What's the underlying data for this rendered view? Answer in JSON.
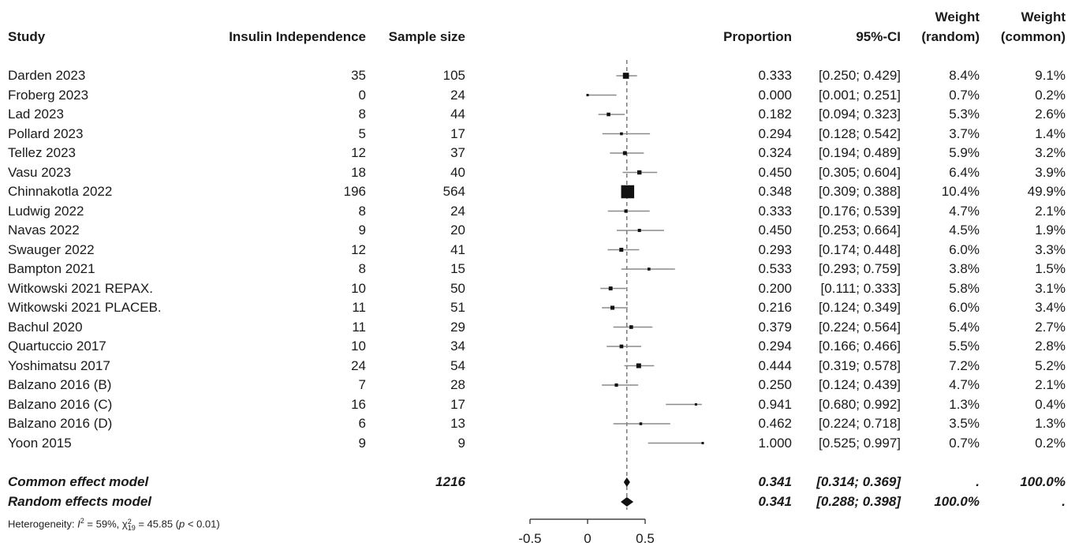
{
  "headers": {
    "study": "Study",
    "events": "Insulin Independence",
    "sample": "Sample size",
    "proportion": "Proportion",
    "ci": "95%-CI",
    "weight_random_1": "Weight",
    "weight_random_2": "(random)",
    "weight_common_1": "Weight",
    "weight_common_2": "(common)"
  },
  "studies": [
    {
      "study": "Darden 2023",
      "events": "35",
      "n": "105",
      "prop": "0.333",
      "ci": "[0.250; 0.429]",
      "w_random": "8.4%",
      "w_common": "9.1%"
    },
    {
      "study": "Froberg 2023",
      "events": "0",
      "n": "24",
      "prop": "0.000",
      "ci": "[0.001; 0.251]",
      "w_random": "0.7%",
      "w_common": "0.2%"
    },
    {
      "study": "Lad 2023",
      "events": "8",
      "n": "44",
      "prop": "0.182",
      "ci": "[0.094; 0.323]",
      "w_random": "5.3%",
      "w_common": "2.6%"
    },
    {
      "study": "Pollard 2023",
      "events": "5",
      "n": "17",
      "prop": "0.294",
      "ci": "[0.128; 0.542]",
      "w_random": "3.7%",
      "w_common": "1.4%"
    },
    {
      "study": "Tellez 2023",
      "events": "12",
      "n": "37",
      "prop": "0.324",
      "ci": "[0.194; 0.489]",
      "w_random": "5.9%",
      "w_common": "3.2%"
    },
    {
      "study": "Vasu 2023",
      "events": "18",
      "n": "40",
      "prop": "0.450",
      "ci": "[0.305; 0.604]",
      "w_random": "6.4%",
      "w_common": "3.9%"
    },
    {
      "study": "Chinnakotla 2022",
      "events": "196",
      "n": "564",
      "prop": "0.348",
      "ci": "[0.309; 0.388]",
      "w_random": "10.4%",
      "w_common": "49.9%"
    },
    {
      "study": "Ludwig 2022",
      "events": "8",
      "n": "24",
      "prop": "0.333",
      "ci": "[0.176; 0.539]",
      "w_random": "4.7%",
      "w_common": "2.1%"
    },
    {
      "study": "Navas 2022",
      "events": "9",
      "n": "20",
      "prop": "0.450",
      "ci": "[0.253; 0.664]",
      "w_random": "4.5%",
      "w_common": "1.9%"
    },
    {
      "study": "Swauger 2022",
      "events": "12",
      "n": "41",
      "prop": "0.293",
      "ci": "[0.174; 0.448]",
      "w_random": "6.0%",
      "w_common": "3.3%"
    },
    {
      "study": "Bampton 2021",
      "events": "8",
      "n": "15",
      "prop": "0.533",
      "ci": "[0.293; 0.759]",
      "w_random": "3.8%",
      "w_common": "1.5%"
    },
    {
      "study": "Witkowski 2021 REPAX.",
      "events": "10",
      "n": "50",
      "prop": "0.200",
      "ci": "[0.111; 0.333]",
      "w_random": "5.8%",
      "w_common": "3.1%"
    },
    {
      "study": "Witkowski 2021 PLACEB.",
      "events": "11",
      "n": "51",
      "prop": "0.216",
      "ci": "[0.124; 0.349]",
      "w_random": "6.0%",
      "w_common": "3.4%"
    },
    {
      "study": "Bachul 2020",
      "events": "11",
      "n": "29",
      "prop": "0.379",
      "ci": "[0.224; 0.564]",
      "w_random": "5.4%",
      "w_common": "2.7%"
    },
    {
      "study": "Quartuccio 2017",
      "events": "10",
      "n": "34",
      "prop": "0.294",
      "ci": "[0.166; 0.466]",
      "w_random": "5.5%",
      "w_common": "2.8%"
    },
    {
      "study": "Yoshimatsu 2017",
      "events": "24",
      "n": "54",
      "prop": "0.444",
      "ci": "[0.319; 0.578]",
      "w_random": "7.2%",
      "w_common": "5.2%"
    },
    {
      "study": "Balzano 2016 (B)",
      "events": "7",
      "n": "28",
      "prop": "0.250",
      "ci": "[0.124; 0.439]",
      "w_random": "4.7%",
      "w_common": "2.1%"
    },
    {
      "study": "Balzano 2016 (C)",
      "events": "16",
      "n": "17",
      "prop": "0.941",
      "ci": "[0.680; 0.992]",
      "w_random": "1.3%",
      "w_common": "0.4%"
    },
    {
      "study": "Balzano 2016 (D)",
      "events": "6",
      "n": "13",
      "prop": "0.462",
      "ci": "[0.224; 0.718]",
      "w_random": "3.5%",
      "w_common": "1.3%"
    },
    {
      "study": "Yoon 2015",
      "events": "9",
      "n": "9",
      "prop": "1.000",
      "ci": "[0.525; 0.997]",
      "w_random": "0.7%",
      "w_common": "0.2%"
    }
  ],
  "summary": {
    "common": {
      "label": "Common effect model",
      "n": "1216",
      "prop": "0.341",
      "ci": "[0.314; 0.369]",
      "w_random": ".",
      "w_common": "100.0%"
    },
    "random": {
      "label": "Random effects model",
      "prop": "0.341",
      "ci": "[0.288; 0.398]",
      "w_random": "100.0%",
      "w_common": "."
    }
  },
  "heterogeneity": {
    "prefix": "Heterogeneity: ",
    "i2_label": "I",
    "i2_exp": "2",
    "i2_value": " = 59%, ",
    "chi": "χ",
    "chi_exp": "2",
    "chi_sub": "19",
    "chi_value": " = 45.85 (",
    "p_label": "p",
    "p_value": " < 0.01)"
  },
  "chart_data": {
    "type": "forest",
    "x_ticks": [
      "-0.5",
      "0",
      "0.5"
    ],
    "x_range": [
      -0.5,
      0.5
    ],
    "reference_line": 0.341,
    "points": [
      {
        "est": 0.333,
        "lo": 0.25,
        "hi": 0.429,
        "w": 9.1
      },
      {
        "est": 0.0,
        "lo": 0.001,
        "hi": 0.251,
        "w": 0.2
      },
      {
        "est": 0.182,
        "lo": 0.094,
        "hi": 0.323,
        "w": 2.6
      },
      {
        "est": 0.294,
        "lo": 0.128,
        "hi": 0.542,
        "w": 1.4
      },
      {
        "est": 0.324,
        "lo": 0.194,
        "hi": 0.489,
        "w": 3.2
      },
      {
        "est": 0.45,
        "lo": 0.305,
        "hi": 0.604,
        "w": 3.9
      },
      {
        "est": 0.348,
        "lo": 0.309,
        "hi": 0.388,
        "w": 49.9
      },
      {
        "est": 0.333,
        "lo": 0.176,
        "hi": 0.539,
        "w": 2.1
      },
      {
        "est": 0.45,
        "lo": 0.253,
        "hi": 0.664,
        "w": 1.9
      },
      {
        "est": 0.293,
        "lo": 0.174,
        "hi": 0.448,
        "w": 3.3
      },
      {
        "est": 0.533,
        "lo": 0.293,
        "hi": 0.759,
        "w": 1.5
      },
      {
        "est": 0.2,
        "lo": 0.111,
        "hi": 0.333,
        "w": 3.1
      },
      {
        "est": 0.216,
        "lo": 0.124,
        "hi": 0.349,
        "w": 3.4
      },
      {
        "est": 0.379,
        "lo": 0.224,
        "hi": 0.564,
        "w": 2.7
      },
      {
        "est": 0.294,
        "lo": 0.166,
        "hi": 0.466,
        "w": 2.8
      },
      {
        "est": 0.444,
        "lo": 0.319,
        "hi": 0.578,
        "w": 5.2
      },
      {
        "est": 0.25,
        "lo": 0.124,
        "hi": 0.439,
        "w": 2.1
      },
      {
        "est": 0.941,
        "lo": 0.68,
        "hi": 0.992,
        "w": 0.4
      },
      {
        "est": 0.462,
        "lo": 0.224,
        "hi": 0.718,
        "w": 1.3
      },
      {
        "est": 1.0,
        "lo": 0.525,
        "hi": 0.997,
        "w": 0.2
      }
    ],
    "summary_diamonds": [
      {
        "name": "common",
        "est": 0.341,
        "lo": 0.314,
        "hi": 0.369
      },
      {
        "name": "random",
        "est": 0.341,
        "lo": 0.288,
        "hi": 0.398
      }
    ]
  }
}
